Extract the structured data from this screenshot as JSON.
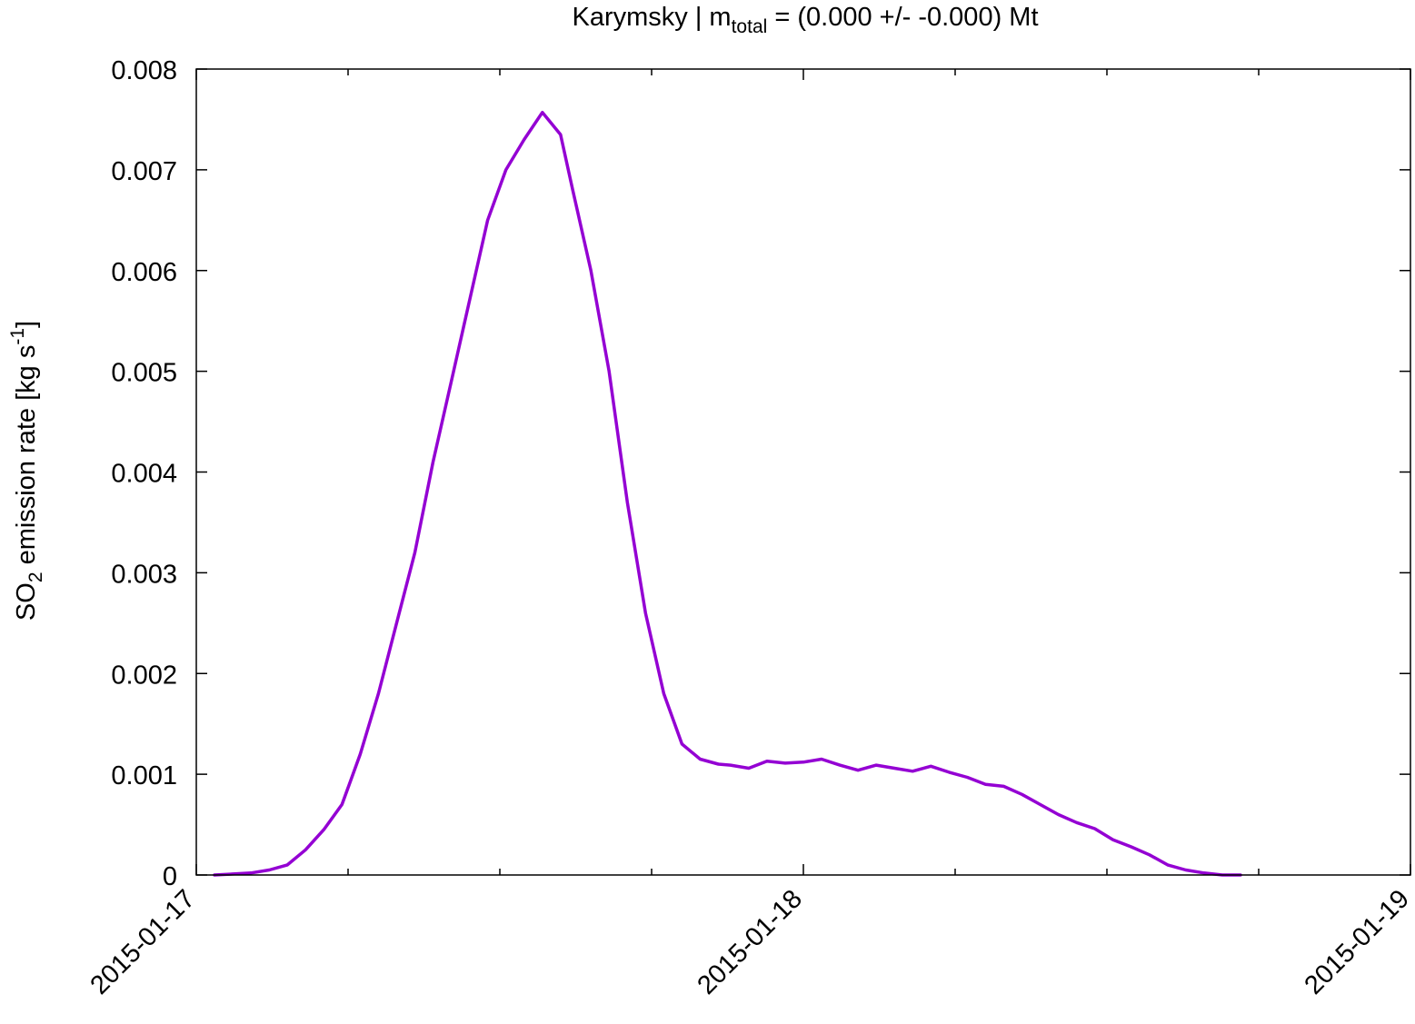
{
  "chart_data": {
    "type": "line",
    "title_prefix": "Karymsky | m",
    "title_sub": "total",
    "title_suffix": " = (0.000 +/- -0.000) Mt",
    "ylabel_pre": "SO",
    "ylabel_sub": "2",
    "ylabel_mid": " emission rate [kg s",
    "ylabel_sup": "-1",
    "ylabel_post": "]",
    "xlabel": "",
    "x_ticks": [
      "2015-01-17",
      "2015-01-18",
      "2015-01-19"
    ],
    "y_ticks": [
      "0",
      "0.001",
      "0.002",
      "0.003",
      "0.004",
      "0.005",
      "0.006",
      "0.007",
      "0.008"
    ],
    "xlim_days": [
      0,
      2
    ],
    "ylim": [
      0,
      0.008
    ],
    "grid": false,
    "legend": "none",
    "line_color": "#9400d3",
    "series": [
      {
        "x_days": [
          0.03,
          0.06,
          0.09,
          0.12,
          0.15,
          0.18,
          0.21,
          0.24,
          0.27,
          0.3,
          0.33,
          0.36,
          0.39,
          0.42,
          0.45,
          0.48,
          0.51,
          0.54,
          0.57,
          0.6,
          0.62,
          0.65,
          0.68,
          0.71,
          0.74,
          0.77,
          0.8,
          0.83,
          0.86,
          0.88,
          0.91,
          0.94,
          0.97,
          1.0,
          1.03,
          1.06,
          1.09,
          1.12,
          1.15,
          1.18,
          1.21,
          1.24,
          1.27,
          1.3,
          1.33,
          1.36,
          1.39,
          1.42,
          1.45,
          1.48,
          1.51,
          1.54,
          1.57,
          1.6,
          1.63,
          1.66,
          1.69,
          1.72
        ],
        "values": [
          0.0,
          1e-05,
          2e-05,
          5e-05,
          0.0001,
          0.00025,
          0.00045,
          0.0007,
          0.0012,
          0.0018,
          0.0025,
          0.0032,
          0.0041,
          0.0049,
          0.0057,
          0.0065,
          0.007,
          0.0073,
          0.00757,
          0.00735,
          0.0068,
          0.006,
          0.005,
          0.0037,
          0.0026,
          0.0018,
          0.0013,
          0.00115,
          0.0011,
          0.00109,
          0.00106,
          0.00113,
          0.00111,
          0.00112,
          0.00115,
          0.00109,
          0.00104,
          0.00109,
          0.00106,
          0.00103,
          0.00108,
          0.00102,
          0.00097,
          0.0009,
          0.00088,
          0.0008,
          0.0007,
          0.0006,
          0.00052,
          0.00046,
          0.00035,
          0.00028,
          0.0002,
          0.0001,
          5e-05,
          2e-05,
          0.0,
          0.0
        ]
      }
    ]
  }
}
